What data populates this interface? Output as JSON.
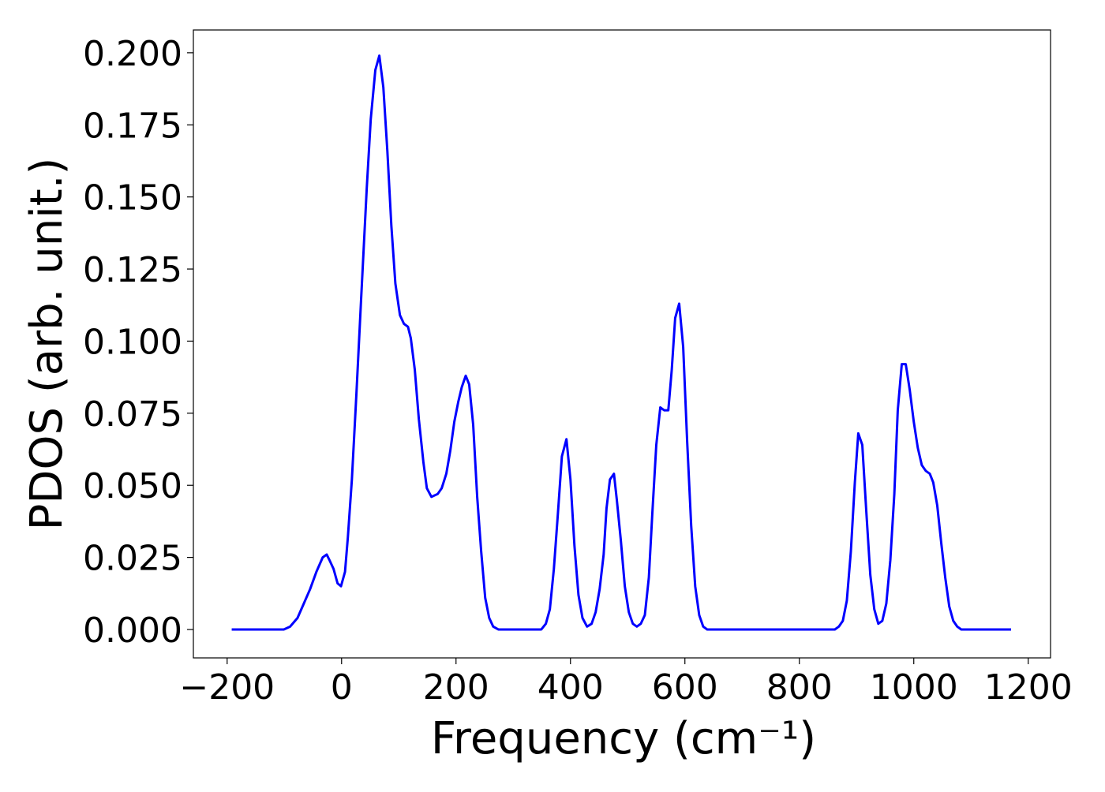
{
  "chart_data": {
    "type": "line",
    "xlabel": "Frequency (cm⁻¹)",
    "ylabel": "PDOS (arb. unit.)",
    "x": [
      -192,
      -101,
      -90,
      -77,
      -66,
      -55,
      -44,
      -33,
      -26,
      -21,
      -14,
      -7,
      -1,
      6,
      11,
      18,
      26,
      34,
      44,
      51,
      59,
      66,
      73,
      80,
      87,
      94,
      102,
      109,
      116,
      121,
      128,
      135,
      143,
      149,
      157,
      168,
      175,
      183,
      190,
      197,
      204,
      210,
      217,
      223,
      230,
      237,
      244,
      251,
      258,
      265,
      274,
      349,
      357,
      364,
      371,
      378,
      385,
      393,
      400,
      407,
      414,
      421,
      429,
      437,
      444,
      451,
      458,
      463,
      469,
      476,
      481,
      488,
      495,
      502,
      509,
      516,
      523,
      530,
      537,
      543,
      550,
      557,
      564,
      571,
      577,
      583,
      590,
      597,
      604,
      611,
      618,
      625,
      632,
      639,
      862,
      869,
      876,
      883,
      890,
      897,
      903,
      910,
      917,
      924,
      931,
      938,
      945,
      952,
      959,
      966,
      972,
      979,
      986,
      993,
      1000,
      1007,
      1014,
      1021,
      1028,
      1034,
      1041,
      1048,
      1055,
      1062,
      1069,
      1076,
      1083,
      1170
    ],
    "series": [
      {
        "name": "PDOS",
        "color": "#0000ff",
        "values": [
          0,
          0,
          0.001,
          0.004,
          0.009,
          0.014,
          0.02,
          0.025,
          0.026,
          0.024,
          0.021,
          0.016,
          0.015,
          0.02,
          0.032,
          0.052,
          0.082,
          0.114,
          0.153,
          0.177,
          0.194,
          0.199,
          0.188,
          0.166,
          0.14,
          0.12,
          0.109,
          0.106,
          0.105,
          0.101,
          0.09,
          0.073,
          0.058,
          0.049,
          0.046,
          0.047,
          0.049,
          0.054,
          0.062,
          0.072,
          0.079,
          0.084,
          0.088,
          0.085,
          0.071,
          0.046,
          0.027,
          0.011,
          0.004,
          0.001,
          0,
          0,
          0.002,
          0.007,
          0.021,
          0.04,
          0.06,
          0.066,
          0.052,
          0.029,
          0.012,
          0.004,
          0.001,
          0.002,
          0.006,
          0.014,
          0.026,
          0.042,
          0.052,
          0.054,
          0.045,
          0.031,
          0.015,
          0.006,
          0.002,
          0.001,
          0.002,
          0.005,
          0.018,
          0.04,
          0.064,
          0.077,
          0.076,
          0.076,
          0.09,
          0.108,
          0.113,
          0.098,
          0.065,
          0.036,
          0.015,
          0.005,
          0.001,
          0,
          0,
          0.001,
          0.003,
          0.01,
          0.027,
          0.051,
          0.068,
          0.064,
          0.041,
          0.019,
          0.007,
          0.002,
          0.003,
          0.009,
          0.024,
          0.047,
          0.076,
          0.092,
          0.092,
          0.083,
          0.072,
          0.063,
          0.057,
          0.055,
          0.054,
          0.051,
          0.043,
          0.03,
          0.018,
          0.008,
          0.003,
          0.001,
          0,
          0
        ]
      }
    ],
    "xlim": [
      -259,
      1239
    ],
    "ylim": [
      -0.00985,
      0.2079
    ],
    "xticks": [
      {
        "value": -200,
        "label": "−200"
      },
      0,
      200,
      400,
      600,
      800,
      1000,
      1200
    ],
    "yticks": [
      {
        "value": 0,
        "label": "0.000"
      },
      {
        "value": 0.025,
        "label": "0.025"
      },
      {
        "value": 0.05,
        "label": "0.050"
      },
      {
        "value": 0.075,
        "label": "0.075"
      },
      {
        "value": 0.1,
        "label": "0.100"
      },
      {
        "value": 0.125,
        "label": "0.125"
      },
      {
        "value": 0.15,
        "label": "0.150"
      },
      {
        "value": 0.175,
        "label": "0.175"
      },
      {
        "value": 0.2,
        "label": "0.200"
      }
    ]
  }
}
